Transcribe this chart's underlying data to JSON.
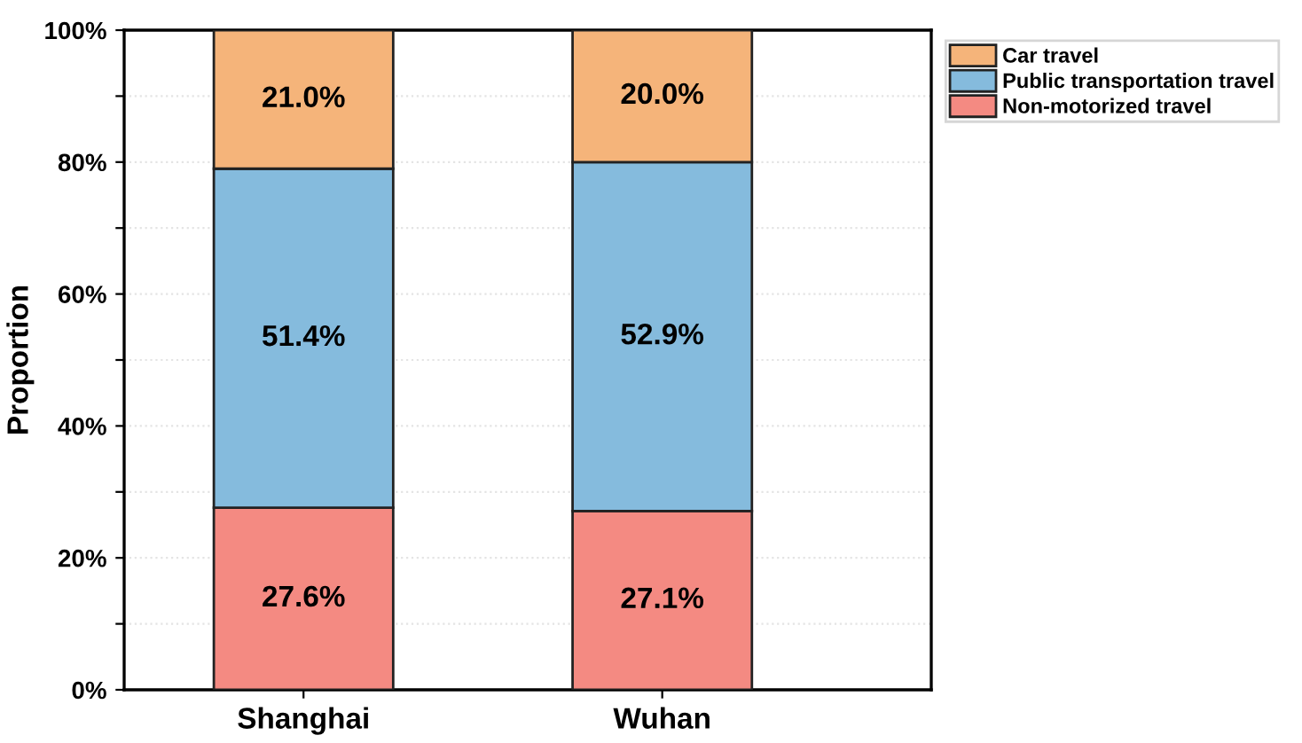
{
  "chart_data": {
    "type": "bar",
    "stacked": true,
    "ylabel": "Proportion",
    "categories": [
      "Shanghai",
      "Wuhan"
    ],
    "series": [
      {
        "name": "Non-motorized travel",
        "color": "#f48a82",
        "values": [
          27.6,
          27.1
        ],
        "value_labels": [
          "27.6%",
          "27.1%"
        ]
      },
      {
        "name": "Public transportation travel",
        "color": "#85bbdd",
        "values": [
          51.4,
          52.9
        ],
        "value_labels": [
          "51.4%",
          "52.9%"
        ]
      },
      {
        "name": "Car travel",
        "color": "#f5b47a",
        "values": [
          21.0,
          20.0
        ],
        "value_labels": [
          "21.0%",
          "20.0%"
        ]
      }
    ],
    "ylim": [
      0,
      100
    ],
    "yticks": [
      {
        "value": 0,
        "label": "0%"
      },
      {
        "value": 10,
        "label": null
      },
      {
        "value": 20,
        "label": "20%"
      },
      {
        "value": 30,
        "label": null
      },
      {
        "value": 40,
        "label": "40%"
      },
      {
        "value": 50,
        "label": null
      },
      {
        "value": 60,
        "label": "60%"
      },
      {
        "value": 70,
        "label": null
      },
      {
        "value": 80,
        "label": "80%"
      },
      {
        "value": 90,
        "label": null
      },
      {
        "value": 100,
        "label": "100%"
      }
    ],
    "grid": "y",
    "legend": "top right"
  }
}
